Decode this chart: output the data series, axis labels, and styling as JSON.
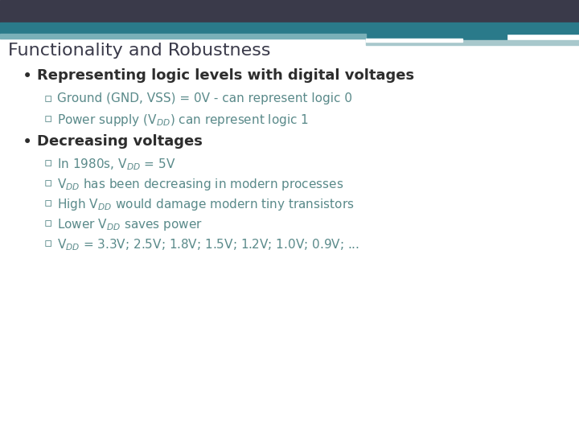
{
  "title": "Functionality and Robustness",
  "title_color": "#3a3a4a",
  "title_fontsize": 16,
  "background_color": "#ffffff",
  "header_dark_color": "#3a3a4a",
  "header_teal_color": "#2a7a8a",
  "header_light_teal1": "#7ab0b8",
  "header_light_teal2": "#a8c8cc",
  "header_white_bar": "#e8eef0",
  "bullet_color": "#2d2d2d",
  "sub_bullet_color": "#5a8a8a",
  "bullet1_text": "Representing logic levels with digital voltages",
  "bullet_fontsize": 13,
  "bullet2_text": "Decreasing voltages",
  "sub_bullets_1": [
    "Ground (GND, VSS) = 0V - can represent logic 0",
    "Power supply (V$_{DD}$) can represent logic 1"
  ],
  "sub_bullets_2": [
    "In 1980s, V$_{DD}$ = 5V",
    "V$_{DD}$ has been decreasing in modern processes",
    "High V$_{DD}$ would damage modern tiny transistors",
    "Lower V$_{DD}$ saves power",
    "V$_{DD}$ = 3.3V; 2.5V; 1.8V; 1.5V; 1.2V; 1.0V; 0.9V; ..."
  ],
  "sub_fontsize": 11
}
